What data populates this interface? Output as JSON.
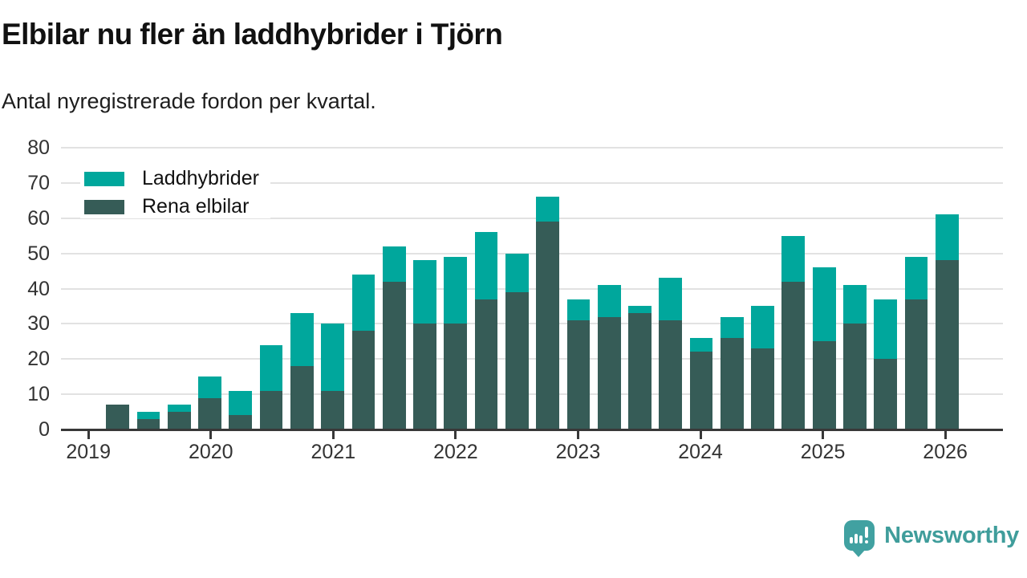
{
  "chart_data": {
    "type": "bar",
    "stacked": true,
    "title": "Elbilar nu fler än laddhybrider i Tjörn",
    "subtitle": "Antal nyregistrerade fordon per kvartal.",
    "x": [
      "2019 Q1",
      "2019 Q2",
      "2019 Q3",
      "2019 Q4",
      "2020 Q1",
      "2020 Q2",
      "2020 Q3",
      "2020 Q4",
      "2021 Q1",
      "2021 Q2",
      "2021 Q3",
      "2021 Q4",
      "2022 Q1",
      "2022 Q2",
      "2022 Q3",
      "2022 Q4",
      "2023 Q1",
      "2023 Q2",
      "2023 Q3",
      "2023 Q4",
      "2024 Q1",
      "2024 Q2",
      "2024 Q3",
      "2024 Q4",
      "2025 Q1",
      "2025 Q2",
      "2025 Q3",
      "2025 Q4"
    ],
    "series": [
      {
        "name": "Laddhybrider",
        "color": "#00a79c",
        "values": [
          0,
          2,
          2,
          6,
          7,
          13,
          15,
          19,
          16,
          10,
          18,
          19,
          19,
          11,
          7,
          6,
          9,
          2,
          12,
          4,
          6,
          12,
          13,
          21,
          11,
          17,
          12,
          13
        ]
      },
      {
        "name": "Rena elbilar",
        "color": "#365c57",
        "values": [
          7,
          3,
          5,
          9,
          4,
          11,
          18,
          11,
          28,
          42,
          30,
          30,
          37,
          39,
          59,
          31,
          32,
          33,
          31,
          22,
          26,
          23,
          42,
          25,
          30,
          20,
          37,
          48
        ]
      }
    ],
    "stack_bottom_to_top": [
      "Rena elbilar",
      "Laddhybrider"
    ],
    "ylim": [
      0,
      80
    ],
    "yticks": [
      0,
      10,
      20,
      30,
      40,
      50,
      60,
      70,
      80
    ],
    "xticks": [
      "2019",
      "2020",
      "2021",
      "2022",
      "2023",
      "2024",
      "2025",
      "2026"
    ],
    "grid": true,
    "legend_position": "top-left",
    "xlabel": "",
    "ylabel": ""
  },
  "footer": {
    "brand": "Newsworthy",
    "brand_color": "#3f9d9b",
    "logo_icon": "chart-speech-bubble-icon"
  }
}
